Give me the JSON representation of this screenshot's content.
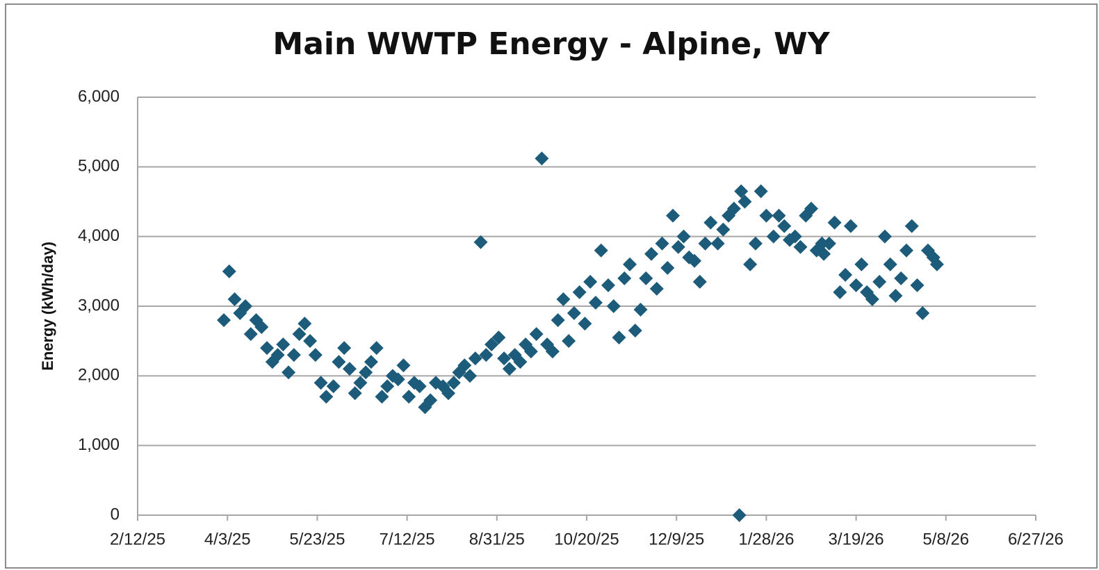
{
  "chart_data": {
    "type": "scatter",
    "title": "Main WWTP Energy - Alpine, WY",
    "y_label": "Energy (kWh/day)",
    "color": "#1c5b7a",
    "grid": true,
    "marker": "diamond",
    "x": [
      "2025-04-01",
      "2025-04-04",
      "2025-04-07",
      "2025-04-10",
      "2025-04-13",
      "2025-04-16",
      "2025-04-19",
      "2025-04-22",
      "2025-04-25",
      "2025-04-28",
      "2025-05-01",
      "2025-05-04",
      "2025-05-07",
      "2025-05-10",
      "2025-05-13",
      "2025-05-16",
      "2025-05-19",
      "2025-05-22",
      "2025-05-25",
      "2025-05-28",
      "2025-06-01",
      "2025-06-04",
      "2025-06-07",
      "2025-06-10",
      "2025-06-13",
      "2025-06-16",
      "2025-06-19",
      "2025-06-22",
      "2025-06-25",
      "2025-06-28",
      "2025-07-01",
      "2025-07-04",
      "2025-07-07",
      "2025-07-10",
      "2025-07-13",
      "2025-07-16",
      "2025-07-19",
      "2025-07-22",
      "2025-07-25",
      "2025-07-28",
      "2025-08-01",
      "2025-08-04",
      "2025-08-07",
      "2025-08-10",
      "2025-08-13",
      "2025-08-16",
      "2025-08-19",
      "2025-08-22",
      "2025-08-25",
      "2025-08-28",
      "2025-09-01",
      "2025-09-04",
      "2025-09-07",
      "2025-09-10",
      "2025-09-13",
      "2025-09-16",
      "2025-09-19",
      "2025-09-22",
      "2025-09-25",
      "2025-09-28",
      "2025-10-01",
      "2025-10-04",
      "2025-10-07",
      "2025-10-10",
      "2025-10-13",
      "2025-10-16",
      "2025-10-19",
      "2025-10-22",
      "2025-10-25",
      "2025-10-28",
      "2025-11-01",
      "2025-11-04",
      "2025-11-07",
      "2025-11-10",
      "2025-11-13",
      "2025-11-16",
      "2025-11-19",
      "2025-11-22",
      "2025-11-25",
      "2025-11-28",
      "2025-12-01",
      "2025-12-04",
      "2025-12-07",
      "2025-12-10",
      "2025-12-13",
      "2025-12-16",
      "2025-12-19",
      "2025-12-22",
      "2025-12-25",
      "2025-12-28",
      "2026-01-01",
      "2026-01-04",
      "2026-01-07",
      "2026-01-10",
      "2026-01-13",
      "2026-01-14",
      "2026-01-16",
      "2026-01-19",
      "2026-01-22",
      "2026-01-25",
      "2026-01-28",
      "2026-02-01",
      "2026-02-04",
      "2026-02-07",
      "2026-02-10",
      "2026-02-13",
      "2026-02-16",
      "2026-02-19",
      "2026-02-22",
      "2026-02-25",
      "2026-02-28",
      "2026-03-01",
      "2026-03-04",
      "2026-03-07",
      "2026-03-10",
      "2026-03-13",
      "2026-03-16",
      "2026-03-19",
      "2026-03-22",
      "2026-03-25",
      "2026-03-28",
      "2026-04-01",
      "2026-04-04",
      "2026-04-07",
      "2026-04-10",
      "2026-04-13",
      "2026-04-16",
      "2026-04-19",
      "2026-04-22",
      "2026-04-25",
      "2026-04-28",
      "2026-05-01",
      "2026-05-03"
    ],
    "values": [
      2800,
      3500,
      3100,
      2900,
      3000,
      2600,
      2800,
      2700,
      2400,
      2200,
      2300,
      2450,
      2050,
      2300,
      2600,
      2750,
      2500,
      2300,
      1900,
      1700,
      1850,
      2200,
      2400,
      2100,
      1750,
      1900,
      2050,
      2200,
      2400,
      1700,
      1850,
      2000,
      1950,
      2150,
      1700,
      1900,
      1850,
      1550,
      1650,
      1900,
      1850,
      1750,
      1900,
      2050,
      2150,
      2000,
      2250,
      3919,
      2300,
      2450,
      2550,
      2250,
      2100,
      2300,
      2200,
      2450,
      2350,
      2600,
      5120,
      2450,
      2350,
      2800,
      3100,
      2500,
      2900,
      3200,
      2750,
      3350,
      3050,
      3800,
      3300,
      3000,
      2550,
      3400,
      3600,
      2650,
      2950,
      3400,
      3750,
      3250,
      3900,
      3550,
      4300,
      3850,
      4000,
      3700,
      3650,
      3350,
      3900,
      4200,
      3900,
      4100,
      4300,
      4400,
      0,
      4650,
      4500,
      3600,
      3900,
      4650,
      4300,
      4000,
      4300,
      4150,
      3950,
      4000,
      3850,
      4300,
      4400,
      3800,
      3900,
      3750,
      3900,
      4200,
      3200,
      3450,
      4150,
      3300,
      3600,
      3200,
      3100,
      3350,
      4000,
      3600,
      3150,
      3400,
      3800,
      4150,
      3300,
      2900,
      3800,
      3700,
      3600
    ],
    "xlim": [
      "2025-02-12",
      "2026-06-27"
    ],
    "xticks": [
      {
        "value": "2025-02-12",
        "label": "2/12/25"
      },
      {
        "value": "2025-04-03",
        "label": "4/3/25"
      },
      {
        "value": "2025-05-23",
        "label": "5/23/25"
      },
      {
        "value": "2025-07-12",
        "label": "7/12/25"
      },
      {
        "value": "2025-08-31",
        "label": "8/31/25"
      },
      {
        "value": "2025-10-20",
        "label": "10/20/25"
      },
      {
        "value": "2025-12-09",
        "label": "12/9/25"
      },
      {
        "value": "2026-01-28",
        "label": "1/28/26"
      },
      {
        "value": "2026-03-19",
        "label": "3/19/26"
      },
      {
        "value": "2026-05-08",
        "label": "5/8/26"
      },
      {
        "value": "2026-06-27",
        "label": "6/27/26"
      }
    ],
    "ylim": [
      0,
      6000
    ],
    "yticks": [
      0,
      {
        "value": 1000,
        "label": "1,000"
      },
      {
        "value": 2000,
        "label": "2,000"
      },
      {
        "value": 3000,
        "label": "3,000"
      },
      {
        "value": 4000,
        "label": "4,000"
      },
      {
        "value": 5000,
        "label": "5,000"
      },
      {
        "value": 6000,
        "label": "6,000"
      }
    ]
  }
}
